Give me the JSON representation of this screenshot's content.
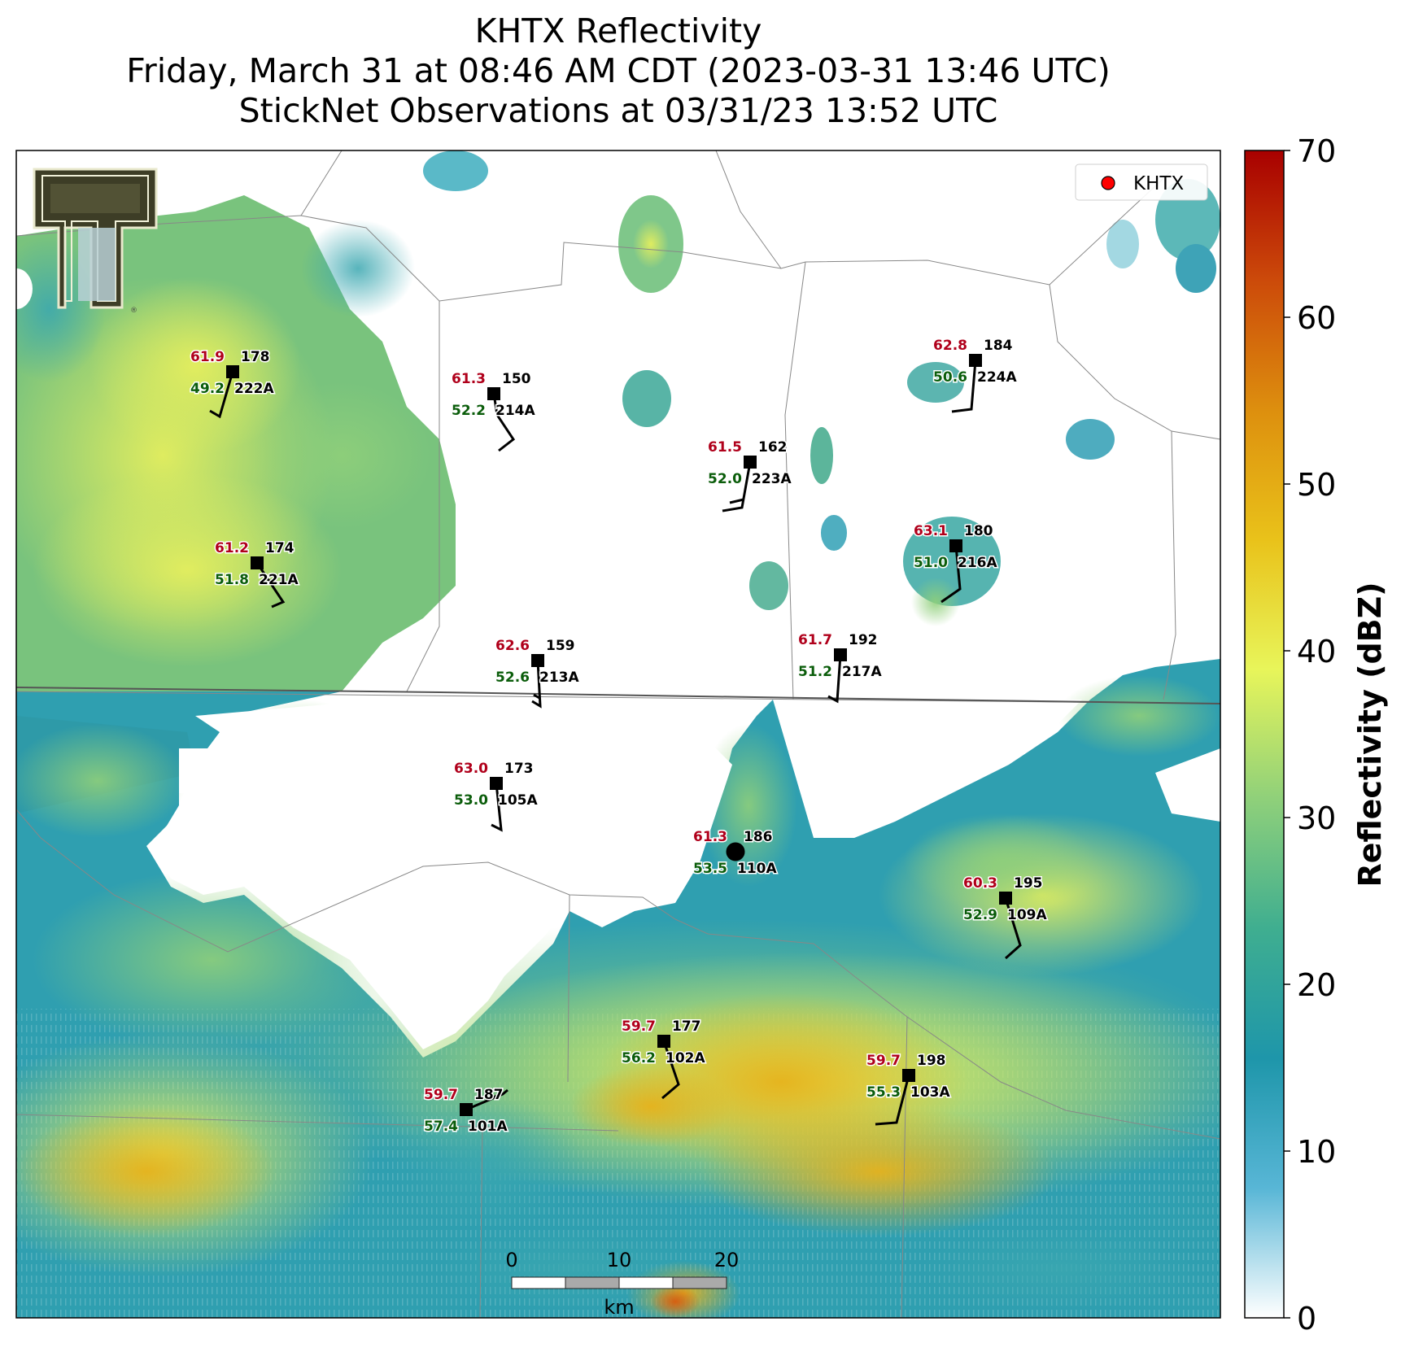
{
  "title": {
    "line1": "KHTX Reflectivity",
    "line2": "Friday, March 31 at 08:46 AM CDT (2023-03-31 13:46 UTC)",
    "line3": "StickNet Observations at 03/31/23 13:52 UTC"
  },
  "legend": {
    "label": "KHTX",
    "marker_color": "#ff0000"
  },
  "colorbar": {
    "label": "Reflectivity (dBZ)",
    "min": 0,
    "max": 70,
    "ticks": [
      "0",
      "10",
      "20",
      "30",
      "40",
      "50",
      "60",
      "70"
    ],
    "stops": [
      "#ffffff",
      "#58b6d6",
      "#1e96aa",
      "#3fae90",
      "#8fd07a",
      "#e8f55a",
      "#e9c21a",
      "#dd8f0e",
      "#cc4a0a",
      "#a80000"
    ]
  },
  "scalebar": {
    "ticks": [
      "0",
      "10",
      "20"
    ],
    "unit": "km"
  },
  "colors": {
    "temperature": "#b0001b",
    "dewpoint": "#0b5d0b",
    "station": "#000000"
  },
  "logo": {
    "name": "Texas Tech double-T logo"
  },
  "stations": [
    {
      "id": "222A",
      "temp": "61.9",
      "dew": "49.2",
      "pressure": "178"
    },
    {
      "id": "214A",
      "temp": "61.3",
      "dew": "52.2",
      "pressure": "150"
    },
    {
      "id": "223A",
      "temp": "61.5",
      "dew": "52.0",
      "pressure": "162"
    },
    {
      "id": "224A",
      "temp": "62.8",
      "dew": "50.6",
      "pressure": "184"
    },
    {
      "id": "221A",
      "temp": "61.2",
      "dew": "51.8",
      "pressure": "174"
    },
    {
      "id": "216A",
      "temp": "63.1",
      "dew": "51.0",
      "pressure": "180"
    },
    {
      "id": "213A",
      "temp": "62.6",
      "dew": "52.6",
      "pressure": "159"
    },
    {
      "id": "217A",
      "temp": "61.7",
      "dew": "51.2",
      "pressure": "192"
    },
    {
      "id": "105A",
      "temp": "63.0",
      "dew": "53.0",
      "pressure": "173"
    },
    {
      "id": "110A",
      "temp": "61.3",
      "dew": "53.5",
      "pressure": "186"
    },
    {
      "id": "109A",
      "temp": "60.3",
      "dew": "52.9",
      "pressure": "195"
    },
    {
      "id": "102A",
      "temp": "59.7",
      "dew": "56.2",
      "pressure": "177"
    },
    {
      "id": "103A",
      "temp": "59.7",
      "dew": "55.3",
      "pressure": "198"
    },
    {
      "id": "101A",
      "temp": "59.7",
      "dew": "57.4",
      "pressure": "187"
    }
  ]
}
